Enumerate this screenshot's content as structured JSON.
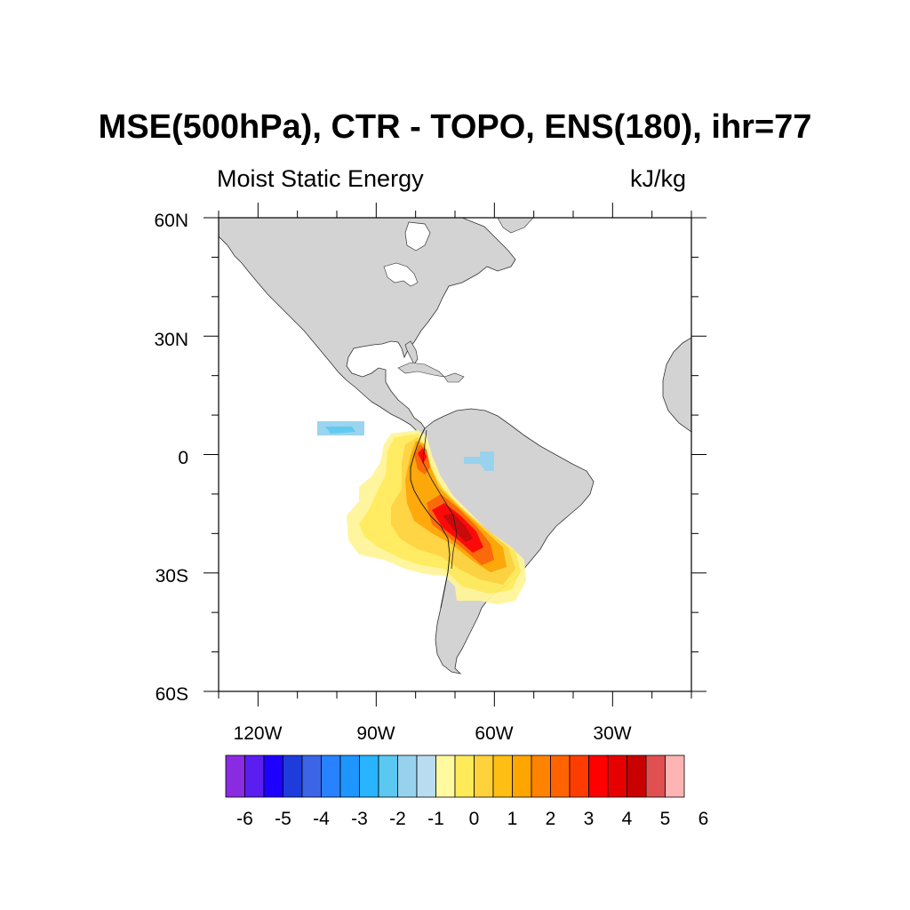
{
  "title": "MSE(500hPa), CTR - TOPO, ENS(180), ihr=77",
  "subtitle_left": "Moist Static Energy",
  "subtitle_right": "kJ/kg",
  "colors": {
    "land": "#d3d3d3",
    "coast": "#333333",
    "ocean": "#ffffff"
  },
  "chart_data": {
    "type": "heatmap",
    "title": "MSE(500hPa), CTR - TOPO, ENS(180), ihr=77",
    "units": "kJ/kg",
    "lon_range": [
      -130,
      -10
    ],
    "lat_range": [
      -60,
      60
    ],
    "lat_ticks": [
      {
        "value": 60,
        "label": "60N"
      },
      {
        "value": 30,
        "label": "30N"
      },
      {
        "value": 0,
        "label": "0"
      },
      {
        "value": -30,
        "label": "30S"
      },
      {
        "value": -60,
        "label": "60S"
      }
    ],
    "lon_ticks": [
      {
        "value": -120,
        "label": "120W"
      },
      {
        "value": -90,
        "label": "90W"
      },
      {
        "value": -60,
        "label": "60W"
      },
      {
        "value": -30,
        "label": "30W"
      }
    ],
    "colorbar": {
      "colors": [
        "#8a2be2",
        "#5a1ef0",
        "#1e00ff",
        "#1e3cdc",
        "#3c64e6",
        "#2882ff",
        "#1e96ff",
        "#28b4ff",
        "#5ac8f0",
        "#96d2ee",
        "#b9dcf0",
        "#fff9a0",
        "#ffeb5a",
        "#ffd23c",
        "#ffbe14",
        "#ffa500",
        "#ff8200",
        "#ff6400",
        "#ff3c00",
        "#ff0000",
        "#e60000",
        "#c80000",
        "#e05050",
        "#ffb4b4"
      ],
      "labels": [
        "-6",
        "-5",
        "-4",
        "-3",
        "-2",
        "-1",
        "0",
        "1",
        "2",
        "3",
        "4",
        "5",
        "6"
      ]
    },
    "anomalies": [
      {
        "region": "South America, Andes and western Pacific margin",
        "sign": "positive",
        "max_value": 5.5
      },
      {
        "region": "Eastern Pacific near 5N, 100W",
        "sign": "negative",
        "min_value": -1.5
      },
      {
        "region": "Central Amazon near 2S, 52W",
        "sign": "negative",
        "min_value": -1.0
      }
    ]
  }
}
